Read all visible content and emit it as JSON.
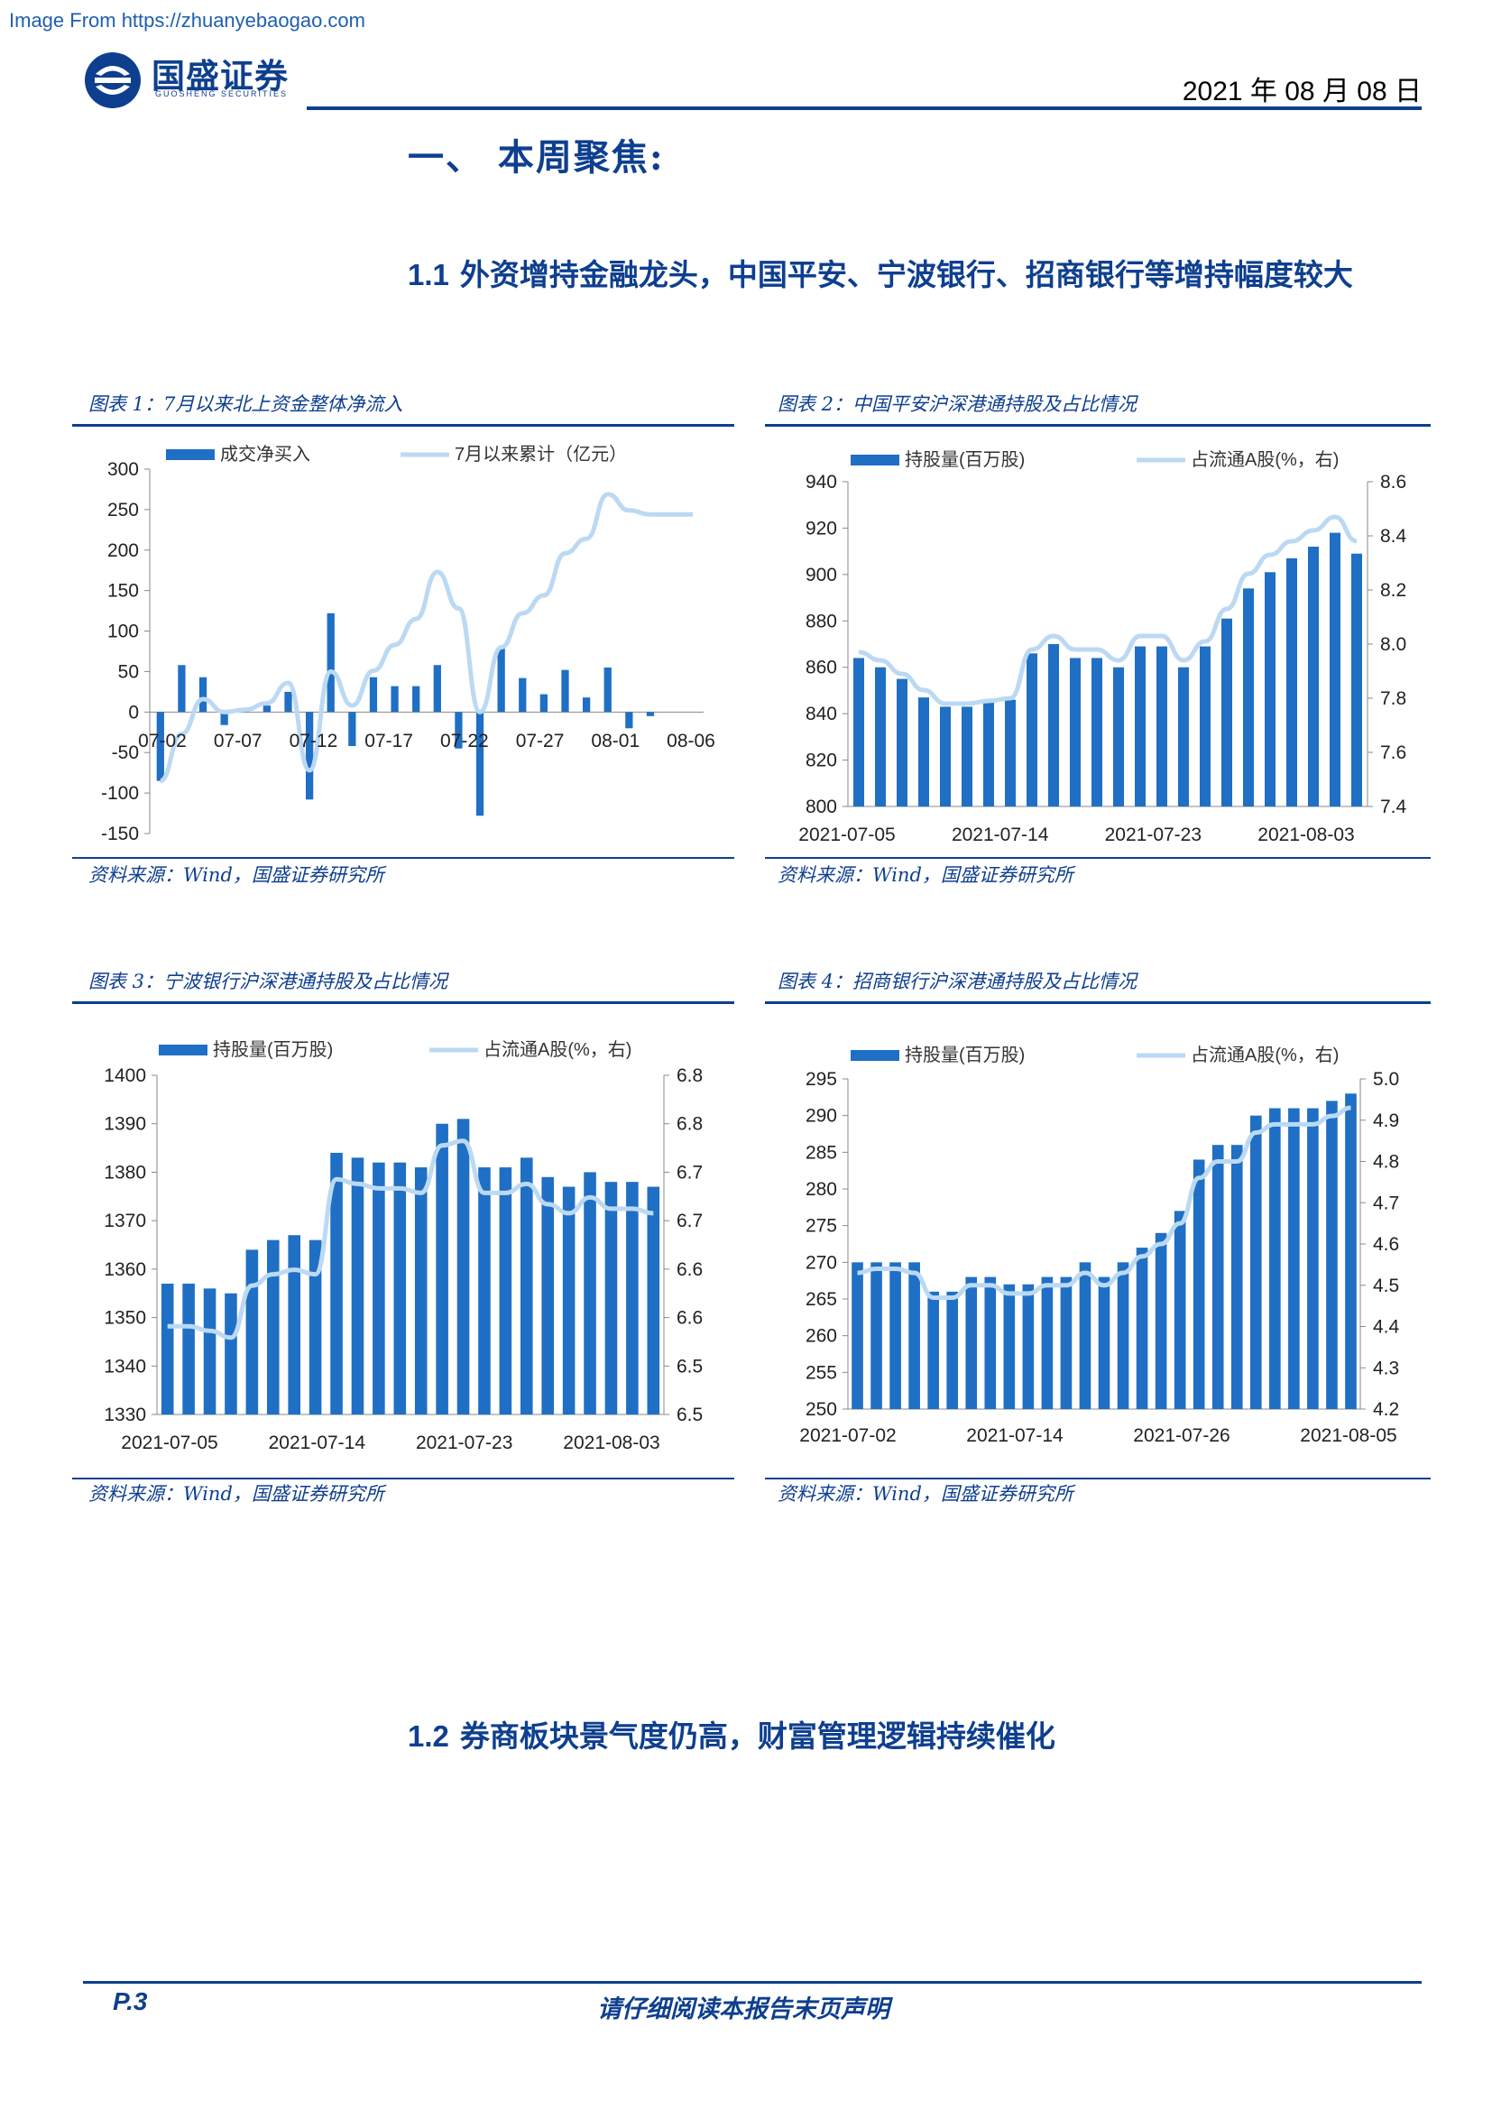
{
  "watermark": "Image From https://zhuanyebaogao.com",
  "logo": {
    "cn": "国盛证券",
    "en": "GUOSHENG SECURITIES"
  },
  "date": "2021 年 08 月 08 日",
  "section": {
    "title": "一、  本周聚焦:"
  },
  "sub1": {
    "num": "1.1",
    "title": "外资增持金融龙头，中国平安、宁波银行、招商银行等增持幅度较大"
  },
  "sub2": {
    "num": "1.2",
    "title": "券商板块景气度仍高，财富管理逻辑持续催化"
  },
  "source_text": "资料来源：Wind，国盛证券研究所",
  "footer": {
    "page": "P.3",
    "disclaimer": "请仔细阅读本报告末页声明"
  },
  "colors": {
    "bar": "#1f6fc5",
    "line": "#bcd9f3",
    "rule": "#0e3f8f"
  },
  "chart_data": [
    {
      "caption": "图表 1：7月以来北上资金整体净流入",
      "type": "bar",
      "legend": {
        "bar": "成交净买入",
        "line": "7月以来累计（亿元）"
      },
      "ylim": [
        -150,
        300
      ],
      "yticks": [
        "300",
        "250",
        "200",
        "150",
        "100",
        "50",
        "0",
        "-50",
        "-100",
        "-150"
      ],
      "xticklabels": [
        "07-02",
        "07-07",
        "07-12",
        "07-17",
        "07-22",
        "07-27",
        "08-01",
        "08-06"
      ],
      "categories": [
        "07-02",
        "07-05",
        "07-06",
        "07-07",
        "07-08",
        "07-09",
        "07-12",
        "07-13",
        "07-14",
        "07-15",
        "07-16",
        "07-19",
        "07-20",
        "07-21",
        "07-22",
        "07-23",
        "07-26",
        "07-27",
        "07-28",
        "07-29",
        "07-30",
        "08-02",
        "08-03",
        "08-04",
        "08-05",
        "08-06"
      ],
      "series": [
        {
          "name": "成交净买入",
          "type": "bar",
          "values": [
            -85,
            58,
            43,
            -16,
            3,
            8,
            25,
            -108,
            122,
            -42,
            43,
            32,
            32,
            58,
            -45,
            -128,
            80,
            42,
            22,
            52,
            18,
            55,
            -20,
            -5,
            0,
            0
          ]
        },
        {
          "name": "7月以来累计（亿元）",
          "type": "line",
          "values": [
            -85,
            -27,
            16,
            0,
            3,
            11,
            36,
            -72,
            50,
            8,
            51,
            83,
            115,
            173,
            128,
            0,
            80,
            122,
            144,
            196,
            214,
            269,
            249,
            244,
            244,
            244
          ]
        }
      ]
    },
    {
      "caption": "图表 2：中国平安沪深港通持股及占比情况",
      "type": "bar",
      "legend": {
        "bar": "持股量(百万股)",
        "line": "占流通A股(%，右)"
      },
      "ylim": [
        800,
        940
      ],
      "y2lim": [
        7.4,
        8.6
      ],
      "yticks": [
        "940",
        "920",
        "900",
        "880",
        "860",
        "840",
        "820",
        "800"
      ],
      "y2ticks": [
        "8.6",
        "8.4",
        "8.2",
        "8.0",
        "7.8",
        "7.6",
        "7.4"
      ],
      "xticklabels": [
        "2021-07-05",
        "2021-07-14",
        "2021-07-23",
        "2021-08-03"
      ],
      "series": [
        {
          "name": "持股量(百万股)",
          "type": "bar",
          "values": [
            864,
            860,
            855,
            847,
            843,
            843,
            846,
            846,
            866,
            870,
            864,
            864,
            860,
            869,
            869,
            860,
            869,
            881,
            894,
            901,
            907,
            912,
            918,
            909
          ]
        },
        {
          "name": "占流通A股(%，右)",
          "type": "line",
          "values": [
            7.97,
            7.94,
            7.89,
            7.83,
            7.78,
            7.78,
            7.79,
            7.8,
            7.98,
            8.03,
            7.98,
            7.98,
            7.94,
            8.03,
            8.03,
            7.94,
            8.01,
            8.13,
            8.26,
            8.33,
            8.38,
            8.42,
            8.47,
            8.38
          ]
        }
      ]
    },
    {
      "caption": "图表 3：宁波银行沪深港通持股及占比情况",
      "type": "bar",
      "legend": {
        "bar": "持股量(百万股)",
        "line": "占流通A股(%，右)"
      },
      "ylim": [
        1330,
        1400
      ],
      "y2lim": [
        6.5,
        6.8
      ],
      "yticks": [
        "1400",
        "1390",
        "1380",
        "1370",
        "1360",
        "1350",
        "1340",
        "1330"
      ],
      "y2ticks": [
        "6.8",
        "6.8",
        "6.7",
        "6.7",
        "6.6",
        "6.6",
        "6.5",
        "6.5"
      ],
      "xticklabels": [
        "2021-07-05",
        "2021-07-14",
        "2021-07-23",
        "2021-08-03"
      ],
      "series": [
        {
          "name": "持股量(百万股)",
          "type": "bar",
          "values": [
            1357,
            1357,
            1356,
            1355,
            1364,
            1366,
            1367,
            1366,
            1384,
            1383,
            1382,
            1382,
            1381,
            1390,
            1391,
            1381,
            1381,
            1383,
            1379,
            1377,
            1380,
            1378,
            1378,
            1377
          ]
        },
        {
          "name": "占流通A股(%，右)",
          "type": "line",
          "values": [
            6.578,
            6.578,
            6.574,
            6.568,
            6.614,
            6.624,
            6.628,
            6.624,
            6.708,
            6.704,
            6.7,
            6.7,
            6.696,
            6.738,
            6.742,
            6.696,
            6.696,
            6.704,
            6.686,
            6.678,
            6.692,
            6.682,
            6.682,
            6.678
          ]
        }
      ]
    },
    {
      "caption": "图表 4：招商银行沪深港通持股及占比情况",
      "type": "bar",
      "legend": {
        "bar": "持股量(百万股)",
        "line": "占流通A股(%，右)"
      },
      "ylim": [
        250,
        295
      ],
      "y2lim": [
        4.2,
        5.0
      ],
      "yticks": [
        "295",
        "290",
        "285",
        "280",
        "275",
        "270",
        "265",
        "260",
        "255",
        "250"
      ],
      "y2ticks": [
        "5.0",
        "4.9",
        "4.8",
        "4.7",
        "4.6",
        "4.5",
        "4.4",
        "4.3",
        "4.2"
      ],
      "xticklabels": [
        "2021-07-02",
        "2021-07-14",
        "2021-07-26",
        "2021-08-05"
      ],
      "series": [
        {
          "name": "持股量(百万股)",
          "type": "bar",
          "values": [
            270,
            270,
            270,
            270,
            266,
            266,
            268,
            268,
            267,
            267,
            268,
            268,
            270,
            268,
            270,
            272,
            274,
            277,
            284,
            286,
            286,
            290,
            291,
            291,
            291,
            292,
            293
          ]
        },
        {
          "name": "占流通A股(%，右)",
          "type": "line",
          "values": [
            4.53,
            4.54,
            4.54,
            4.53,
            4.47,
            4.47,
            4.5,
            4.5,
            4.48,
            4.48,
            4.5,
            4.5,
            4.53,
            4.5,
            4.53,
            4.57,
            4.6,
            4.65,
            4.76,
            4.8,
            4.8,
            4.87,
            4.89,
            4.89,
            4.89,
            4.91,
            4.93
          ]
        }
      ]
    }
  ]
}
